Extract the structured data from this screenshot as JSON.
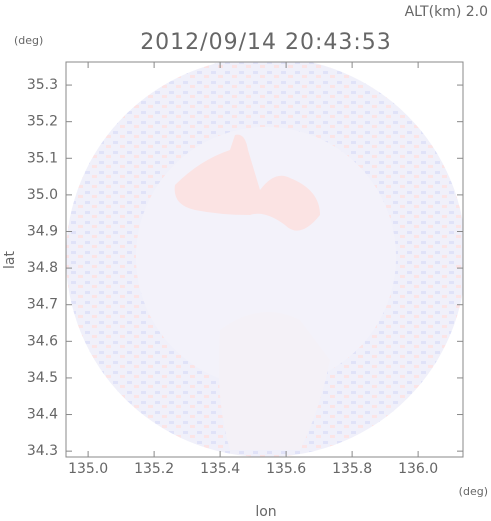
{
  "chart_data": {
    "type": "image",
    "title": "2012/09/14 20:43:53",
    "annotation": "ALT(km) 2.0",
    "y_unit": "(deg)",
    "x_unit": "(deg)",
    "xlabel": "lon",
    "ylabel": "lat",
    "xlim": [
      134.933,
      136.136
    ],
    "ylim": [
      34.284,
      35.363
    ],
    "xticks": [
      {
        "value": 135.0,
        "label": "135.0"
      },
      135.2,
      135.4,
      135.6,
      135.8,
      {
        "value": 136.0,
        "label": "136.0"
      }
    ],
    "yticks": [
      34.3,
      34.4,
      34.5,
      34.6,
      34.7,
      34.8,
      34.9,
      {
        "value": 35.0,
        "label": "35.0"
      },
      35.1,
      35.2,
      35.3
    ]
  }
}
